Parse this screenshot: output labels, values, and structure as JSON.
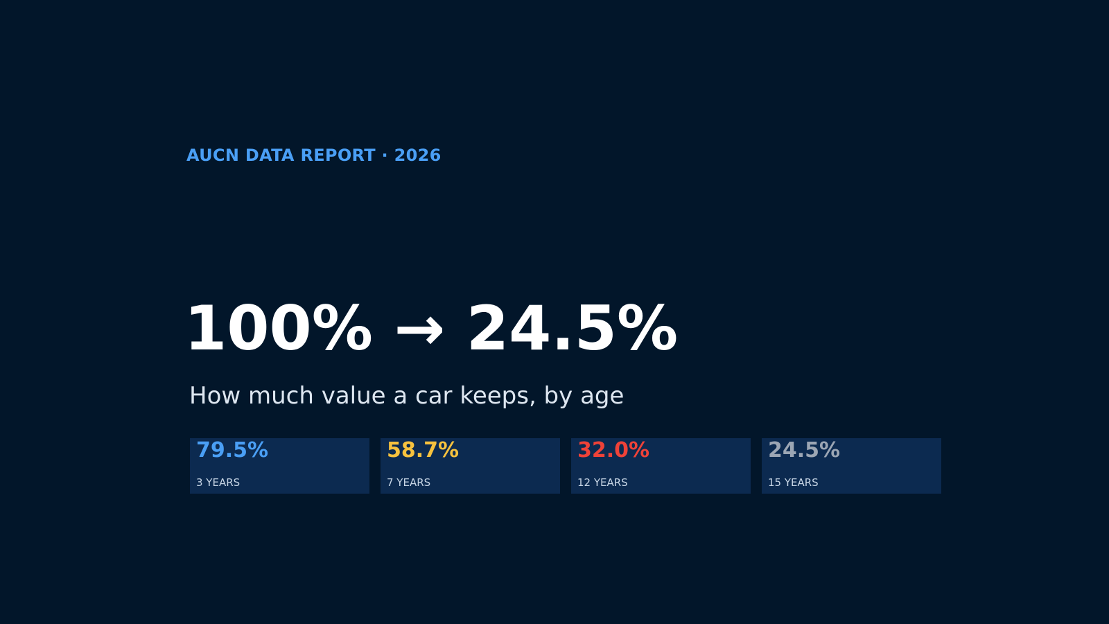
{
  "report": {
    "eyebrow": "AUCN DATA REPORT · 2026",
    "headline": "100% → 24.5%",
    "subtitle": "How much value a car keeps, by age"
  },
  "stats": [
    {
      "value": "79.5%",
      "label": "3 YEARS",
      "color": "#4a9ff5"
    },
    {
      "value": "58.7%",
      "label": "7 YEARS",
      "color": "#f7c23e"
    },
    {
      "value": "32.0%",
      "label": "12 YEARS",
      "color": "#ef4238"
    },
    {
      "value": "24.5%",
      "label": "15 YEARS",
      "color": "#9ca6b4"
    }
  ],
  "colors": {
    "background": "#02162a",
    "card": "#0c2a50",
    "eyebrow": "#4a9ff5"
  }
}
